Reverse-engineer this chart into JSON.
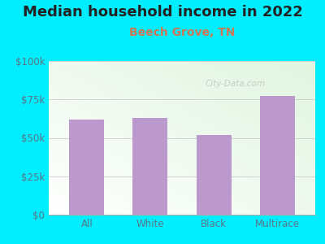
{
  "title": "Median household income in 2022",
  "subtitle": "Beech Grove, TN",
  "categories": [
    "All",
    "White",
    "Black",
    "Multirace"
  ],
  "values": [
    62000,
    63000,
    52000,
    77000
  ],
  "bar_color": "#bb99cc",
  "background_color": "#00eeff",
  "title_color": "#222222",
  "subtitle_color": "#cc7755",
  "axis_label_color": "#557788",
  "ytick_labels": [
    "$0",
    "$25k",
    "$50k",
    "$75k",
    "$100k"
  ],
  "ytick_values": [
    0,
    25000,
    50000,
    75000,
    100000
  ],
  "ylim": [
    0,
    100000
  ],
  "watermark": "City-Data.com",
  "title_fontsize": 13,
  "subtitle_fontsize": 10,
  "tick_fontsize": 8.5
}
